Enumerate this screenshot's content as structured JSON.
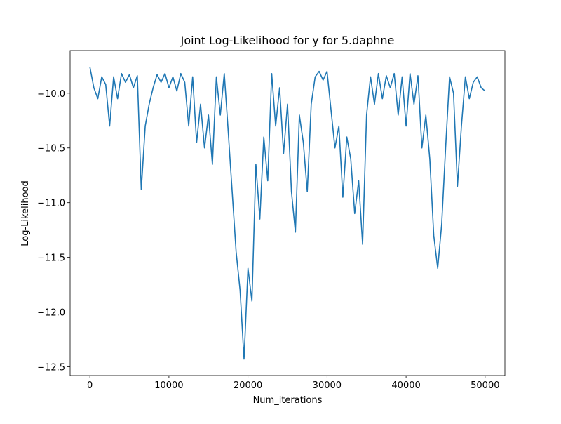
{
  "chart_data": {
    "type": "line",
    "title": "Joint Log-Likelihood for y for 5.daphne",
    "x_label": "Num_iterations",
    "y_label": "Log-Likelihood",
    "x": [
      0,
      500,
      1000,
      1500,
      2000,
      2500,
      3000,
      3500,
      4000,
      4500,
      5000,
      5500,
      6000,
      6500,
      7000,
      7500,
      8000,
      8500,
      9000,
      9500,
      10000,
      10500,
      11000,
      11500,
      12000,
      12500,
      13000,
      13500,
      14000,
      14500,
      15000,
      15500,
      16000,
      16500,
      17000,
      17500,
      18000,
      18500,
      19000,
      19500,
      20000,
      20500,
      21000,
      21500,
      22000,
      22500,
      23000,
      23500,
      24000,
      24500,
      25000,
      25500,
      26000,
      26500,
      27000,
      27500,
      28000,
      28500,
      29000,
      29500,
      30000,
      30500,
      31000,
      31500,
      32000,
      32500,
      33000,
      33500,
      34000,
      34500,
      35000,
      35500,
      36000,
      36500,
      37000,
      37500,
      38000,
      38500,
      39000,
      39500,
      40000,
      40500,
      41000,
      41500,
      42000,
      42500,
      43000,
      43500,
      44000,
      44500,
      45000,
      45500,
      46000,
      46500,
      47000,
      47500,
      48000,
      48500,
      49000,
      49500,
      50000
    ],
    "series": [
      {
        "color": "#1f77b4",
        "values": [
          -9.76,
          -9.95,
          -10.05,
          -9.85,
          -9.92,
          -10.3,
          -9.85,
          -10.05,
          -9.82,
          -9.9,
          -9.83,
          -9.95,
          -9.84,
          -10.88,
          -10.3,
          -10.1,
          -9.95,
          -9.83,
          -9.9,
          -9.82,
          -9.95,
          -9.85,
          -9.98,
          -9.82,
          -9.9,
          -10.3,
          -9.85,
          -10.45,
          -10.1,
          -10.5,
          -10.2,
          -10.65,
          -9.85,
          -10.2,
          -9.82,
          -10.35,
          -10.9,
          -11.45,
          -11.8,
          -12.43,
          -11.6,
          -11.9,
          -10.65,
          -11.15,
          -10.4,
          -10.8,
          -9.82,
          -10.3,
          -9.95,
          -10.55,
          -10.1,
          -10.9,
          -11.27,
          -10.2,
          -10.45,
          -10.9,
          -10.1,
          -9.85,
          -9.8,
          -9.88,
          -9.8,
          -10.15,
          -10.5,
          -10.3,
          -10.95,
          -10.4,
          -10.6,
          -11.1,
          -10.8,
          -11.38,
          -10.2,
          -9.85,
          -10.1,
          -9.82,
          -10.05,
          -9.84,
          -9.95,
          -9.82,
          -10.2,
          -9.85,
          -10.3,
          -9.82,
          -10.1,
          -9.84,
          -10.5,
          -10.2,
          -10.6,
          -11.3,
          -11.6,
          -11.2,
          -10.5,
          -9.85,
          -10.0,
          -10.85,
          -10.3,
          -9.85,
          -10.05,
          -9.9,
          -9.85,
          -9.95,
          -9.98
        ]
      }
    ],
    "xlim": [
      -2500,
      52500
    ],
    "ylim": [
      -12.58,
      -9.61
    ],
    "xticks": [
      0,
      10000,
      20000,
      30000,
      40000,
      50000
    ],
    "yticks": [
      {
        "value": -12.5,
        "label": "−12.5"
      },
      {
        "value": -12.0,
        "label": "−12.0"
      },
      {
        "value": -11.5,
        "label": "−11.5"
      },
      {
        "value": -11.0,
        "label": "−11.0"
      },
      {
        "value": -10.5,
        "label": "−10.5"
      },
      {
        "value": -10.0,
        "label": "−10.0"
      }
    ]
  }
}
